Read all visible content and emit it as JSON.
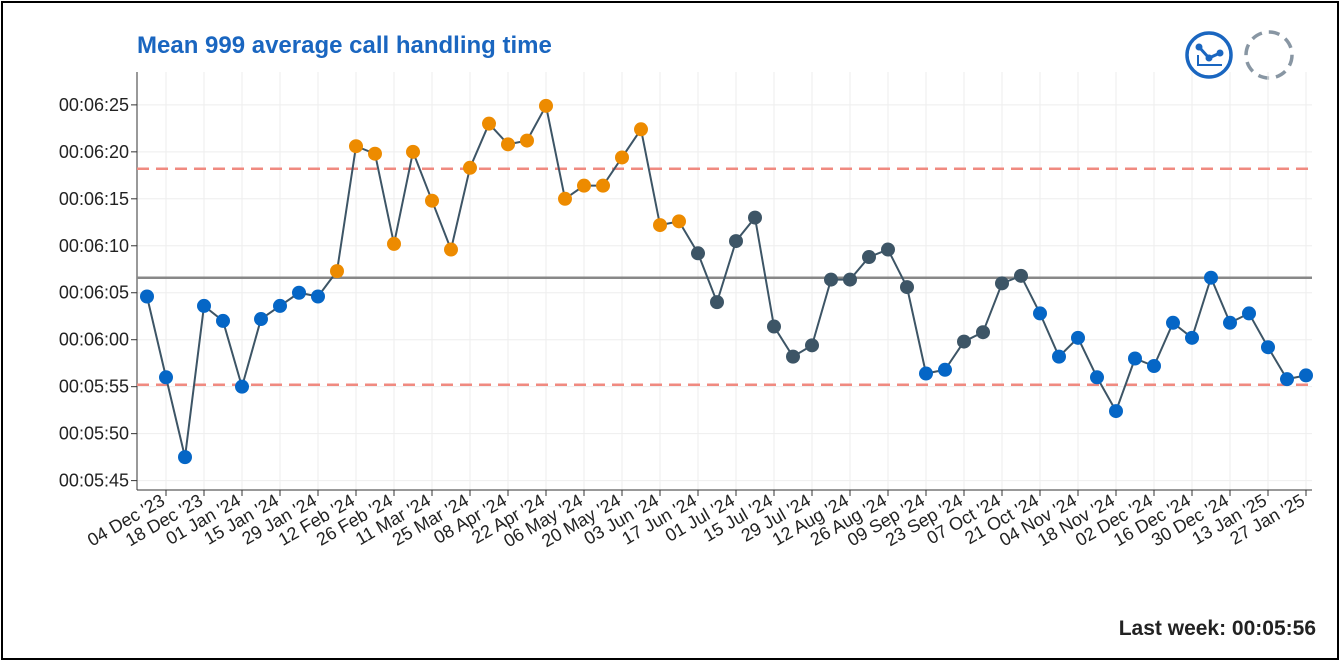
{
  "chart_data": {
    "type": "line",
    "title": "Mean 999 average call handling time",
    "footer": "Last week: 00:05:56",
    "categories": [
      null,
      "04 Dec '23",
      null,
      "18 Dec '23",
      null,
      "01 Jan '24",
      null,
      "15 Jan '24",
      null,
      "29 Jan '24",
      null,
      "12 Feb '24",
      null,
      "26 Feb '24",
      null,
      "11 Mar '24",
      null,
      "25 Mar '24",
      null,
      "08 Apr '24",
      null,
      "22 Apr '24",
      null,
      "06 May '24",
      null,
      "20 May '24",
      null,
      "03 Jun '24",
      null,
      "17 Jun '24",
      null,
      "01 Jul '24",
      null,
      "15 Jul '24",
      null,
      "29 Jul '24",
      null,
      "12 Aug '24",
      null,
      "26 Aug '24",
      null,
      "09 Sep '24",
      null,
      "23 Sep '24",
      null,
      "07 Oct '24",
      null,
      "21 Oct '24",
      null,
      "04 Nov '24",
      null,
      "18 Nov '24",
      null,
      "02 Dec '24",
      null,
      "16 Dec '24",
      null,
      "30 Dec '24",
      null,
      "13 Jan '25",
      null,
      "27 Jan '25"
    ],
    "series": [
      {
        "color": "#3d5566",
        "values": [
          364.6,
          356,
          347.5,
          363.6,
          362,
          355,
          362.2,
          363.6,
          365,
          364.6,
          367.3,
          380.6,
          379.8,
          370.2,
          380,
          374.8,
          369.6,
          378.3,
          383,
          380.8,
          381.2,
          384.9,
          375,
          376.4,
          376.4,
          379.4,
          382.4,
          372.2,
          372.6,
          369.2,
          364,
          370.5,
          373,
          361.4,
          358.2,
          359.4,
          366.4,
          366.4,
          368.8,
          369.6,
          365.6,
          356.4,
          356.8,
          359.8,
          360.8,
          366,
          366.8,
          362.8,
          358.2,
          360.2,
          356,
          352.4,
          358,
          357.2,
          361.8,
          360.2,
          366.6,
          361.8,
          362.8,
          359.2,
          355.8,
          356.2
        ],
        "point_colors": [
          "#0566c6",
          "#0566c6",
          "#0566c6",
          "#0566c6",
          "#0566c6",
          "#0566c6",
          "#0566c6",
          "#0566c6",
          "#0566c6",
          "#0566c6",
          "#ed8b00",
          "#ed8b00",
          "#ed8b00",
          "#ed8b00",
          "#ed8b00",
          "#ed8b00",
          "#ed8b00",
          "#ed8b00",
          "#ed8b00",
          "#ed8b00",
          "#ed8b00",
          "#ed8b00",
          "#ed8b00",
          "#ed8b00",
          "#ed8b00",
          "#ed8b00",
          "#ed8b00",
          "#ed8b00",
          "#ed8b00",
          "#3d5566",
          "#3d5566",
          "#3d5566",
          "#3d5566",
          "#3d5566",
          "#3d5566",
          "#3d5566",
          "#3d5566",
          "#3d5566",
          "#3d5566",
          "#3d5566",
          "#3d5566",
          "#0566c6",
          "#0566c6",
          "#3d5566",
          "#3d5566",
          "#3d5566",
          "#3d5566",
          "#0566c6",
          "#0566c6",
          "#0566c6",
          "#0566c6",
          "#0566c6",
          "#0566c6",
          "#0566c6",
          "#0566c6",
          "#0566c6",
          "#0566c6",
          "#0566c6",
          "#0566c6",
          "#0566c6",
          "#0566c6",
          "#0566c6"
        ]
      }
    ],
    "mean": 366.6,
    "mean_color": "#888888",
    "upper_limit": 378.2,
    "lower_limit": 355.2,
    "limit_color": "#f08a80",
    "ylim": [
      344,
      388.5
    ],
    "yticks": [
      {
        "value": 345,
        "label": "00:05:45"
      },
      {
        "value": 350,
        "label": "00:05:50"
      },
      {
        "value": 355,
        "label": "00:05:55"
      },
      {
        "value": 360,
        "label": "00:06:00"
      },
      {
        "value": 365,
        "label": "00:06:05"
      },
      {
        "value": 370,
        "label": "00:06:10"
      },
      {
        "value": 375,
        "label": "00:06:15"
      },
      {
        "value": 380,
        "label": "00:06:20"
      },
      {
        "value": 385,
        "label": "00:06:25"
      }
    ],
    "grid": true
  }
}
